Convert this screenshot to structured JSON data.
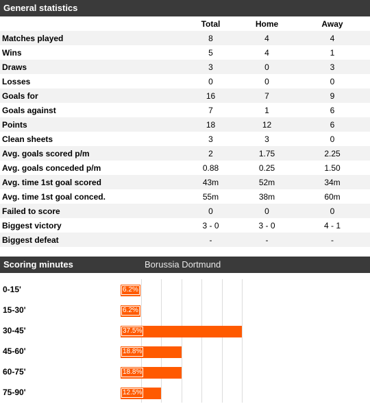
{
  "general": {
    "title": "General statistics",
    "columns": [
      "",
      "Total",
      "Home",
      "Away"
    ],
    "rows": [
      {
        "label": "Matches played",
        "total": "8",
        "home": "4",
        "away": "4"
      },
      {
        "label": "Wins",
        "total": "5",
        "home": "4",
        "away": "1"
      },
      {
        "label": "Draws",
        "total": "3",
        "home": "0",
        "away": "3"
      },
      {
        "label": "Losses",
        "total": "0",
        "home": "0",
        "away": "0"
      },
      {
        "label": "Goals for",
        "total": "16",
        "home": "7",
        "away": "9"
      },
      {
        "label": "Goals against",
        "total": "7",
        "home": "1",
        "away": "6"
      },
      {
        "label": "Points",
        "total": "18",
        "home": "12",
        "away": "6"
      },
      {
        "label": "Clean sheets",
        "total": "3",
        "home": "3",
        "away": "0"
      },
      {
        "label": "Avg. goals scored p/m",
        "total": "2",
        "home": "1.75",
        "away": "2.25"
      },
      {
        "label": "Avg. goals conceded p/m",
        "total": "0.88",
        "home": "0.25",
        "away": "1.50"
      },
      {
        "label": "Avg. time 1st goal scored",
        "total": "43m",
        "home": "52m",
        "away": "34m"
      },
      {
        "label": "Avg. time 1st goal conced.",
        "total": "55m",
        "home": "38m",
        "away": "60m"
      },
      {
        "label": "Failed to score",
        "total": "0",
        "home": "0",
        "away": "0"
      },
      {
        "label": "Biggest victory",
        "total": "3 - 0",
        "home": "3 - 0",
        "away": "4 - 1"
      },
      {
        "label": "Biggest defeat",
        "total": "-",
        "home": "-",
        "away": "-"
      }
    ]
  },
  "scoring": {
    "title": "Scoring minutes",
    "team": "Borussia Dortmund",
    "bar_color": "#ff5a00"
  },
  "chart_data": {
    "type": "bar",
    "orientation": "horizontal",
    "categories": [
      "0-15'",
      "15-30'",
      "30-45'",
      "45-60'",
      "60-75'",
      "75-90'"
    ],
    "values": [
      6.2,
      6.2,
      37.5,
      18.8,
      18.8,
      12.5
    ],
    "value_labels": [
      "6.2%",
      "6.2%",
      "37.5%",
      "18.8%",
      "18.8%",
      "12.5%"
    ],
    "xlim": [
      0,
      100
    ]
  }
}
